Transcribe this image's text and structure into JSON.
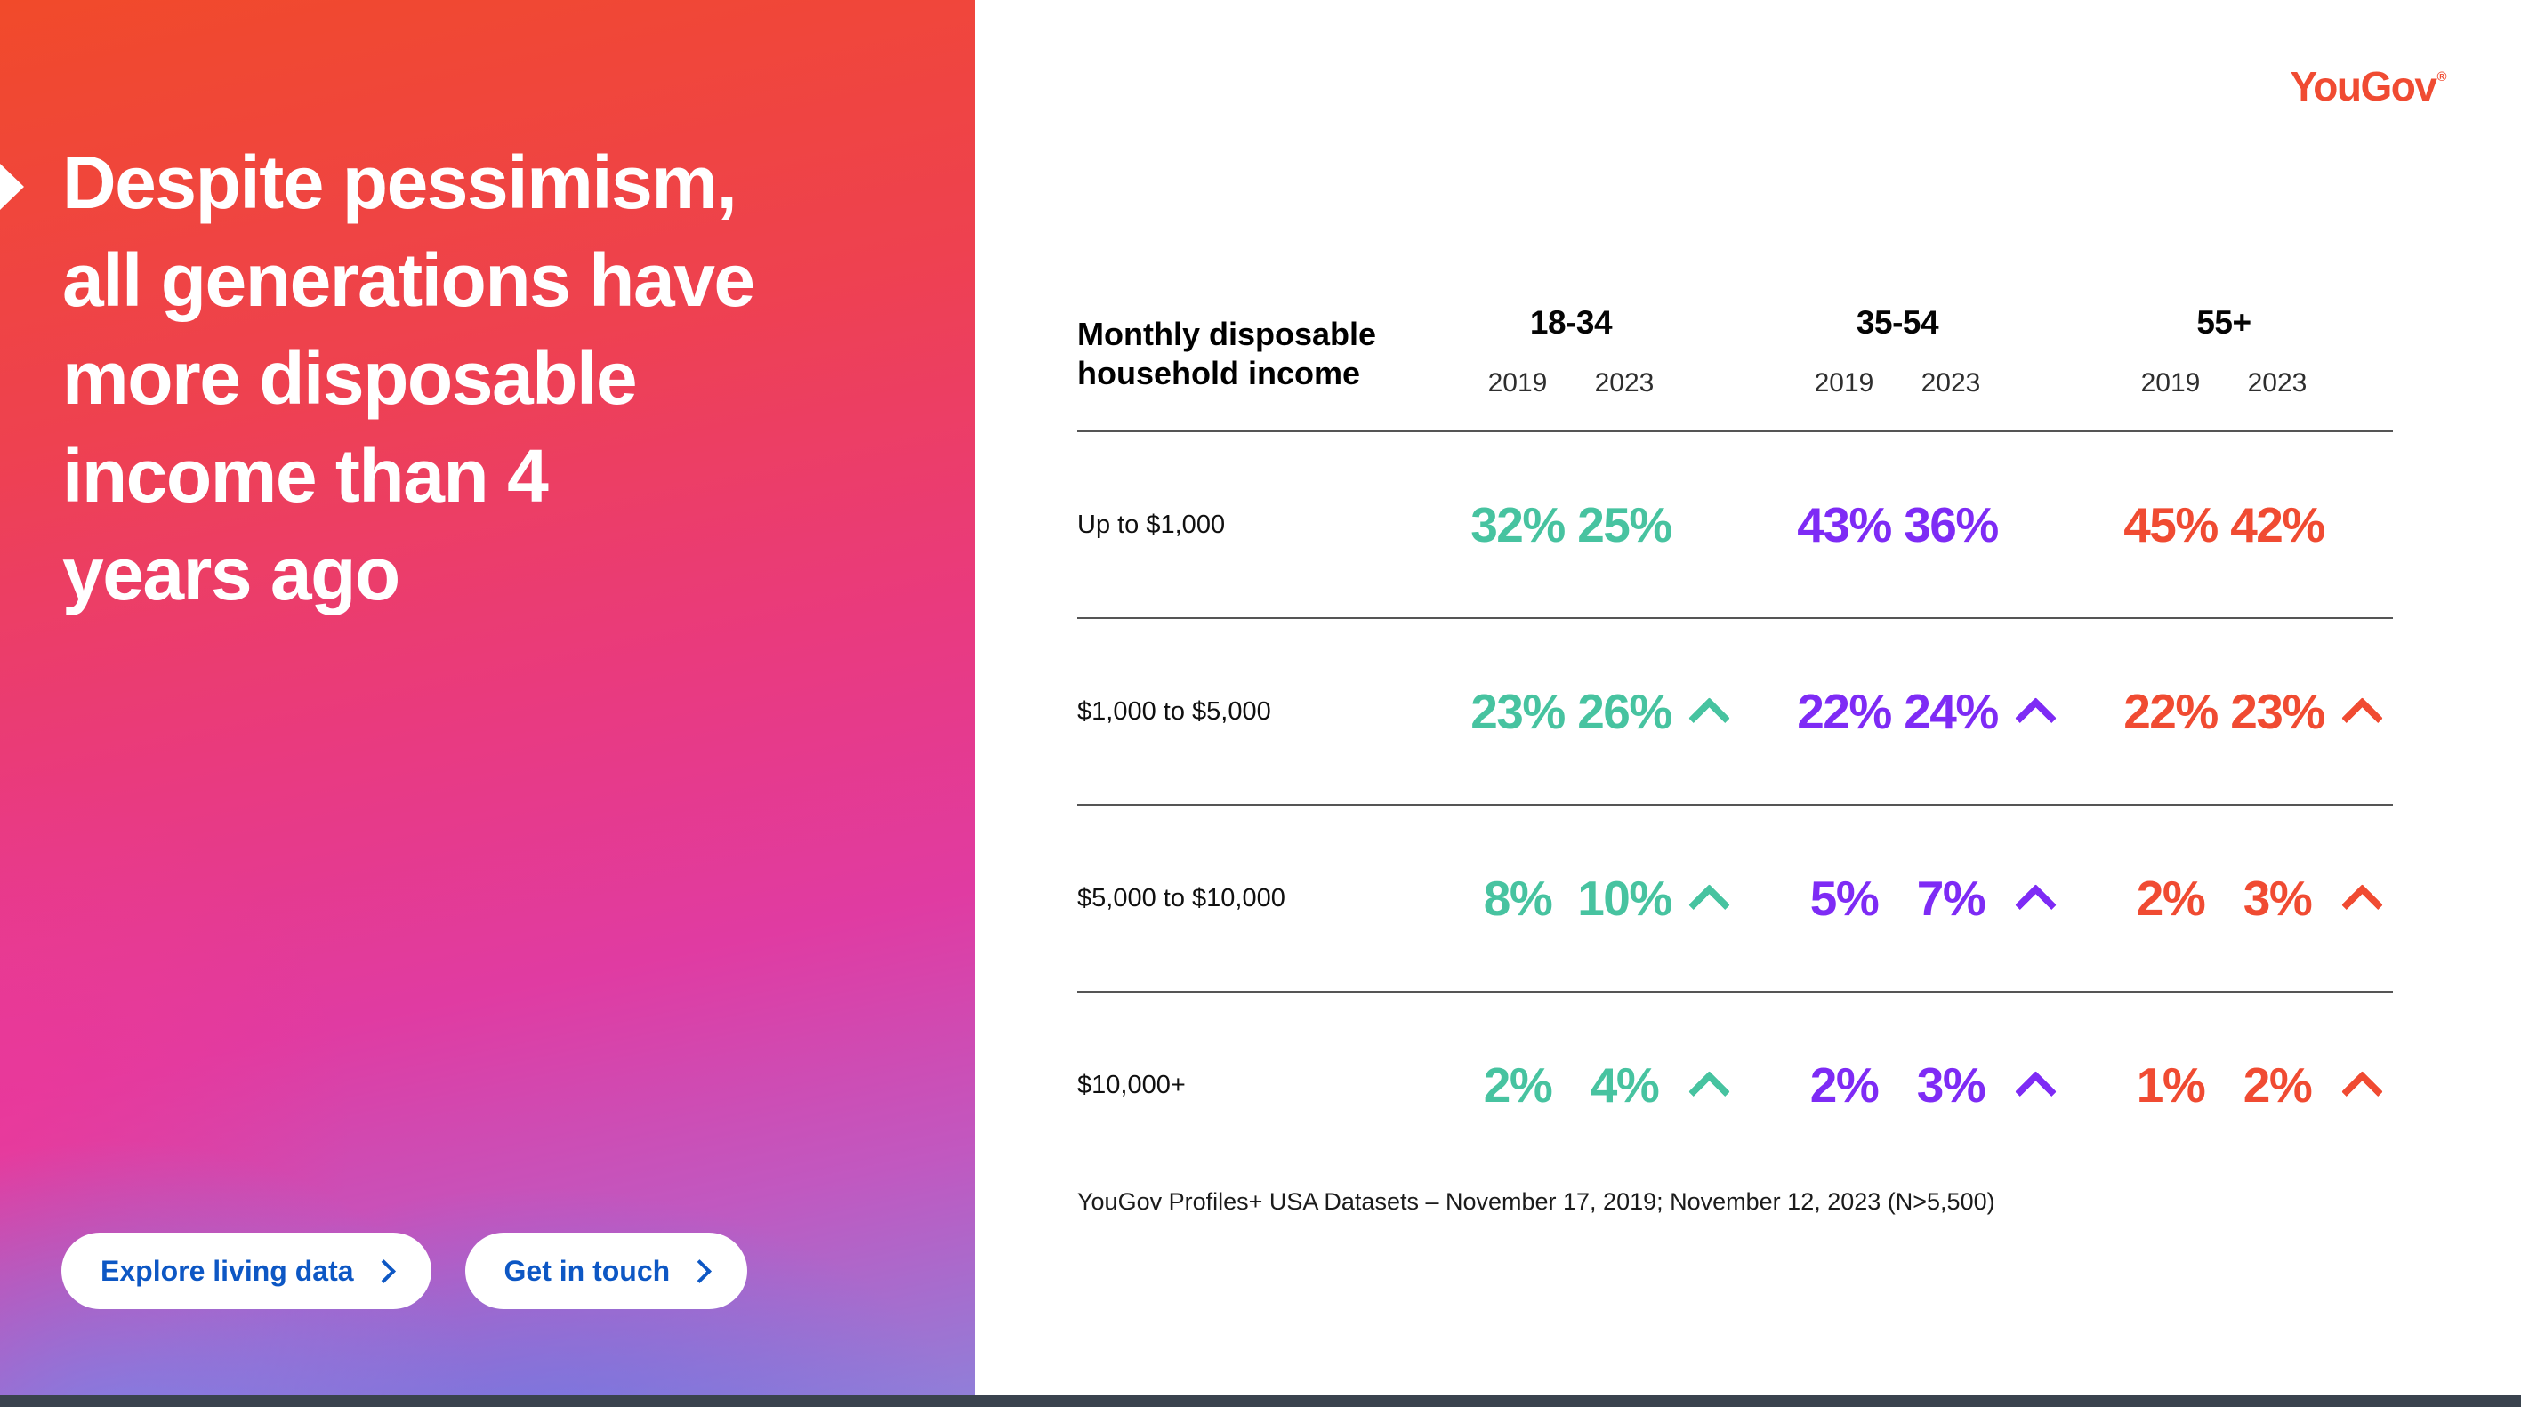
{
  "hero": {
    "headline": "Despite pessimism, all generations have more disposable income than 4 years ago",
    "headline_lines": [
      "Despite pessimism,",
      "all generations have",
      "more disposable",
      "income than 4",
      "years ago"
    ],
    "buttons": [
      {
        "label": "Explore living data"
      },
      {
        "label": "Get in touch"
      }
    ],
    "button_text_color": "#0d57c4"
  },
  "logo": {
    "text": "YouGov",
    "mark": "®",
    "color": "#f04b32"
  },
  "table": {
    "header": "Monthly disposable household income",
    "year_labels": [
      "2019",
      "2023"
    ],
    "groups": [
      {
        "label": "18-34",
        "color": "#47c3a0"
      },
      {
        "label": "35-54",
        "color": "#7e2bf5"
      },
      {
        "label": "55+",
        "color": "#f04b32"
      }
    ],
    "rows": [
      {
        "label": "Up to $1,000",
        "cells": [
          {
            "y2019": "32%",
            "y2023": "25%",
            "increase": false
          },
          {
            "y2019": "43%",
            "y2023": "36%",
            "increase": false
          },
          {
            "y2019": "45%",
            "y2023": "42%",
            "increase": false
          }
        ]
      },
      {
        "label": "$1,000 to $5,000",
        "cells": [
          {
            "y2019": "23%",
            "y2023": "26%",
            "increase": true
          },
          {
            "y2019": "22%",
            "y2023": "24%",
            "increase": true
          },
          {
            "y2019": "22%",
            "y2023": "23%",
            "increase": true
          }
        ]
      },
      {
        "label": "$5,000 to $10,000",
        "cells": [
          {
            "y2019": "8%",
            "y2023": "10%",
            "increase": true
          },
          {
            "y2019": "5%",
            "y2023": "7%",
            "increase": true
          },
          {
            "y2019": "2%",
            "y2023": "3%",
            "increase": true
          }
        ]
      },
      {
        "label": "$10,000+",
        "cells": [
          {
            "y2019": "2%",
            "y2023": "4%",
            "increase": true
          },
          {
            "y2019": "2%",
            "y2023": "3%",
            "increase": true
          },
          {
            "y2019": "1%",
            "y2023": "2%",
            "increase": true
          }
        ]
      }
    ],
    "source": "YouGov Profiles+ USA Datasets – November 17, 2019; November 12, 2023 (N>5,500)"
  },
  "chart_data": {
    "type": "table",
    "title": "Monthly disposable household income",
    "categories": [
      "Up to $1,000",
      "$1,000 to $5,000",
      "$5,000 to $10,000",
      "$10,000+"
    ],
    "series": [
      {
        "name": "18-34 2019",
        "values": [
          32,
          23,
          8,
          2
        ]
      },
      {
        "name": "18-34 2023",
        "values": [
          25,
          26,
          10,
          4
        ]
      },
      {
        "name": "35-54 2019",
        "values": [
          43,
          22,
          5,
          2
        ]
      },
      {
        "name": "35-54 2023",
        "values": [
          36,
          24,
          7,
          3
        ]
      },
      {
        "name": "55+ 2019",
        "values": [
          45,
          22,
          2,
          1
        ]
      },
      {
        "name": "55+ 2023",
        "values": [
          42,
          23,
          3,
          2
        ]
      }
    ],
    "unit": "%",
    "annotations": "Up chevrons mark 2023 values that rose versus 2019 (all rows except 'Up to $1,000')."
  }
}
